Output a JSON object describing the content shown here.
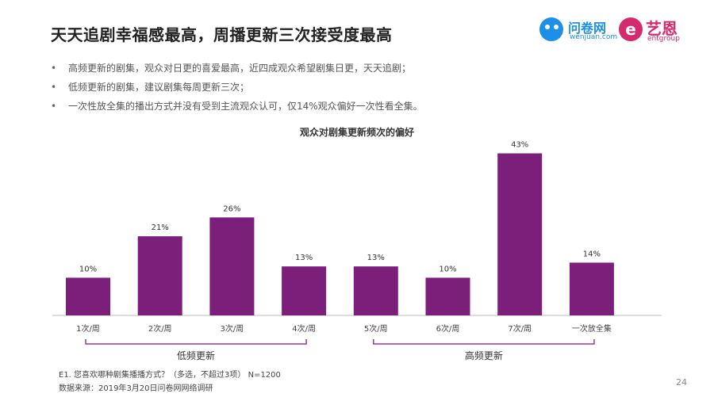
{
  "header": {
    "title": "天天追剧幸福感最高，周播更新三次接受度最高"
  },
  "logos": {
    "wenjuan": {
      "name": "问卷网",
      "sub": "wenjuan.com",
      "color": "#1e8fe6"
    },
    "entgroup": {
      "mark": "e",
      "name": "艺恩",
      "sub": "entgroup",
      "color": "#d42a6f"
    }
  },
  "bullets": [
    "高频更新的剧集，观众对日更的喜爱最高，近四成观众希望剧集日更，天天追剧；",
    "低频更新的剧集，建议剧集每周更新三次；",
    "一次性放全集的播出方式并没有受到主流观众认可，仅14%观众偏好一次性看全集。"
  ],
  "chart_data": {
    "type": "bar",
    "title": "观众对剧集更新频次的偏好",
    "categories": [
      "1次/周",
      "2次/周",
      "3次/周",
      "4次/周",
      "5次/周",
      "6次/周",
      "7次/周",
      "一次放全集"
    ],
    "values": [
      10,
      21,
      26,
      13,
      13,
      10,
      43,
      14
    ],
    "value_labels": [
      "10%",
      "21%",
      "26%",
      "13%",
      "13%",
      "10%",
      "43%",
      "14%"
    ],
    "bar_color": "#7b1f7b",
    "ylim": [
      0,
      45
    ],
    "groups": [
      {
        "label": "低频更新",
        "from": 0,
        "to": 3
      },
      {
        "label": "高频更新",
        "from": 4,
        "to": 7
      }
    ],
    "group_line_color": "#9b3a9b"
  },
  "footnotes": [
    "E1. 您喜欢哪种剧集播播方式？（多选，不超过3项） N=1200",
    "数据来源：2019年3月20日问卷网网络调研"
  ],
  "page_number": "24"
}
